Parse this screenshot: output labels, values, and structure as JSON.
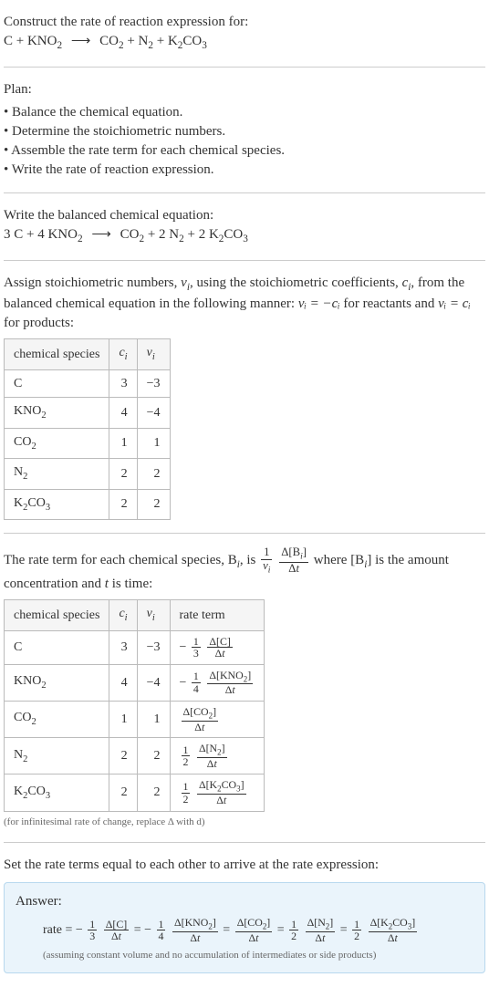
{
  "colors": {
    "text": "#333333",
    "divider": "#cccccc",
    "tableBorder": "#bbbbbb",
    "tableHeaderBg": "#f5f5f5",
    "answerBg": "#eaf4fb",
    "answerBorder": "#b8d8ee",
    "noteText": "#666666"
  },
  "fonts": {
    "body_family": "Georgia, 'Times New Roman', serif",
    "body_size_pt": 11,
    "note_size_pt": 8
  },
  "intro": {
    "prompt": "Construct the rate of reaction expression for:",
    "equation": {
      "lhs": [
        {
          "coef": "",
          "species": "C"
        },
        {
          "coef": "",
          "species": "KNO",
          "sub": "2"
        }
      ],
      "rhs": [
        {
          "coef": "",
          "species": "CO",
          "sub": "2"
        },
        {
          "coef": "",
          "species": "N",
          "sub": "2"
        },
        {
          "coef": "",
          "species": "K",
          "sub": "2",
          "tail": "CO",
          "tailsub": "3"
        }
      ],
      "arrow": "⟶"
    }
  },
  "plan": {
    "heading": "Plan:",
    "items": [
      "Balance the chemical equation.",
      "Determine the stoichiometric numbers.",
      "Assemble the rate term for each chemical species.",
      "Write the rate of reaction expression."
    ],
    "bullet": "•"
  },
  "balanced": {
    "heading": "Write the balanced chemical equation:",
    "equation": {
      "lhs": [
        {
          "coef": "3",
          "species": "C"
        },
        {
          "coef": "4",
          "species": "KNO",
          "sub": "2"
        }
      ],
      "rhs": [
        {
          "coef": "",
          "species": "CO",
          "sub": "2"
        },
        {
          "coef": "2",
          "species": "N",
          "sub": "2"
        },
        {
          "coef": "2",
          "species": "K",
          "sub": "2",
          "tail": "CO",
          "tailsub": "3"
        }
      ],
      "arrow": "⟶"
    }
  },
  "stoich": {
    "text_a": "Assign stoichiometric numbers, ",
    "nu_i": "ν",
    "nu_sub": "i",
    "text_b": ", using the stoichiometric coefficients, ",
    "c_i": "c",
    "c_sub": "i",
    "text_c": ", from the balanced chemical equation in the following manner: ",
    "rel_reactants": "νᵢ = −cᵢ",
    "text_d": " for reactants and ",
    "rel_products": "νᵢ = cᵢ",
    "text_e": " for products:",
    "table": {
      "headers": [
        "chemical species",
        "cᵢ",
        "νᵢ"
      ],
      "rows": [
        {
          "species": "C",
          "c": "3",
          "nu": "−3"
        },
        {
          "species_html": "KNO<sub>2</sub>",
          "c": "4",
          "nu": "−4"
        },
        {
          "species_html": "CO<sub>2</sub>",
          "c": "1",
          "nu": "1"
        },
        {
          "species_html": "N<sub>2</sub>",
          "c": "2",
          "nu": "2"
        },
        {
          "species_html": "K<sub>2</sub>CO<sub>3</sub>",
          "c": "2",
          "nu": "2"
        }
      ]
    }
  },
  "rateterm": {
    "text_a": "The rate term for each chemical species, B",
    "sub_i": "i",
    "text_b": ", is ",
    "frac1_top": "1",
    "frac1_bot_html": "<span class='ital'>ν<sub>i</sub></span>",
    "frac2_top_html": "Δ[B<sub><i>i</i></sub>]",
    "frac2_bot_html": "Δ<i>t</i>",
    "text_c": " where [B",
    "text_d": "] is the amount concentration and ",
    "t_var": "t",
    "text_e": " is time:",
    "table": {
      "headers": [
        "chemical species",
        "cᵢ",
        "νᵢ",
        "rate term"
      ],
      "rows": [
        {
          "species_html": "C",
          "c": "3",
          "nu": "−3",
          "rate_html": "− <span class='frac'><span class='top'>1</span><span class='bot'>3</span></span> <span class='frac'><span class='top'>Δ[C]</span><span class='bot'>Δ<i>t</i></span></span>"
        },
        {
          "species_html": "KNO<sub>2</sub>",
          "c": "4",
          "nu": "−4",
          "rate_html": "− <span class='frac'><span class='top'>1</span><span class='bot'>4</span></span> <span class='frac'><span class='top'>Δ[KNO<sub>2</sub>]</span><span class='bot'>Δ<i>t</i></span></span>"
        },
        {
          "species_html": "CO<sub>2</sub>",
          "c": "1",
          "nu": "1",
          "rate_html": "<span class='frac'><span class='top'>Δ[CO<sub>2</sub>]</span><span class='bot'>Δ<i>t</i></span></span>"
        },
        {
          "species_html": "N<sub>2</sub>",
          "c": "2",
          "nu": "2",
          "rate_html": "<span class='frac'><span class='top'>1</span><span class='bot'>2</span></span> <span class='frac'><span class='top'>Δ[N<sub>2</sub>]</span><span class='bot'>Δ<i>t</i></span></span>"
        },
        {
          "species_html": "K<sub>2</sub>CO<sub>3</sub>",
          "c": "2",
          "nu": "2",
          "rate_html": "<span class='frac'><span class='top'>1</span><span class='bot'>2</span></span> <span class='frac'><span class='top'>Δ[K<sub>2</sub>CO<sub>3</sub>]</span><span class='bot'>Δ<i>t</i></span></span>"
        }
      ]
    },
    "note": "(for infinitesimal rate of change, replace Δ with d)"
  },
  "final": {
    "heading": "Set the rate terms equal to each other to arrive at the rate expression:",
    "answer_label": "Answer:",
    "rate_word": "rate = ",
    "terms_html": "− <span class='frac'><span class='top'>1</span><span class='bot'>3</span></span> <span class='frac'><span class='top'>Δ[C]</span><span class='bot'>Δ<i>t</i></span></span> = − <span class='frac'><span class='top'>1</span><span class='bot'>4</span></span> <span class='frac'><span class='top'>Δ[KNO<sub>2</sub>]</span><span class='bot'>Δ<i>t</i></span></span> = <span class='frac'><span class='top'>Δ[CO<sub>2</sub>]</span><span class='bot'>Δ<i>t</i></span></span> = <span class='frac'><span class='top'>1</span><span class='bot'>2</span></span> <span class='frac'><span class='top'>Δ[N<sub>2</sub>]</span><span class='bot'>Δ<i>t</i></span></span> = <span class='frac'><span class='top'>1</span><span class='bot'>2</span></span> <span class='frac'><span class='top'>Δ[K<sub>2</sub>CO<sub>3</sub>]</span><span class='bot'>Δ<i>t</i></span></span>",
    "note": "(assuming constant volume and no accumulation of intermediates or side products)"
  }
}
